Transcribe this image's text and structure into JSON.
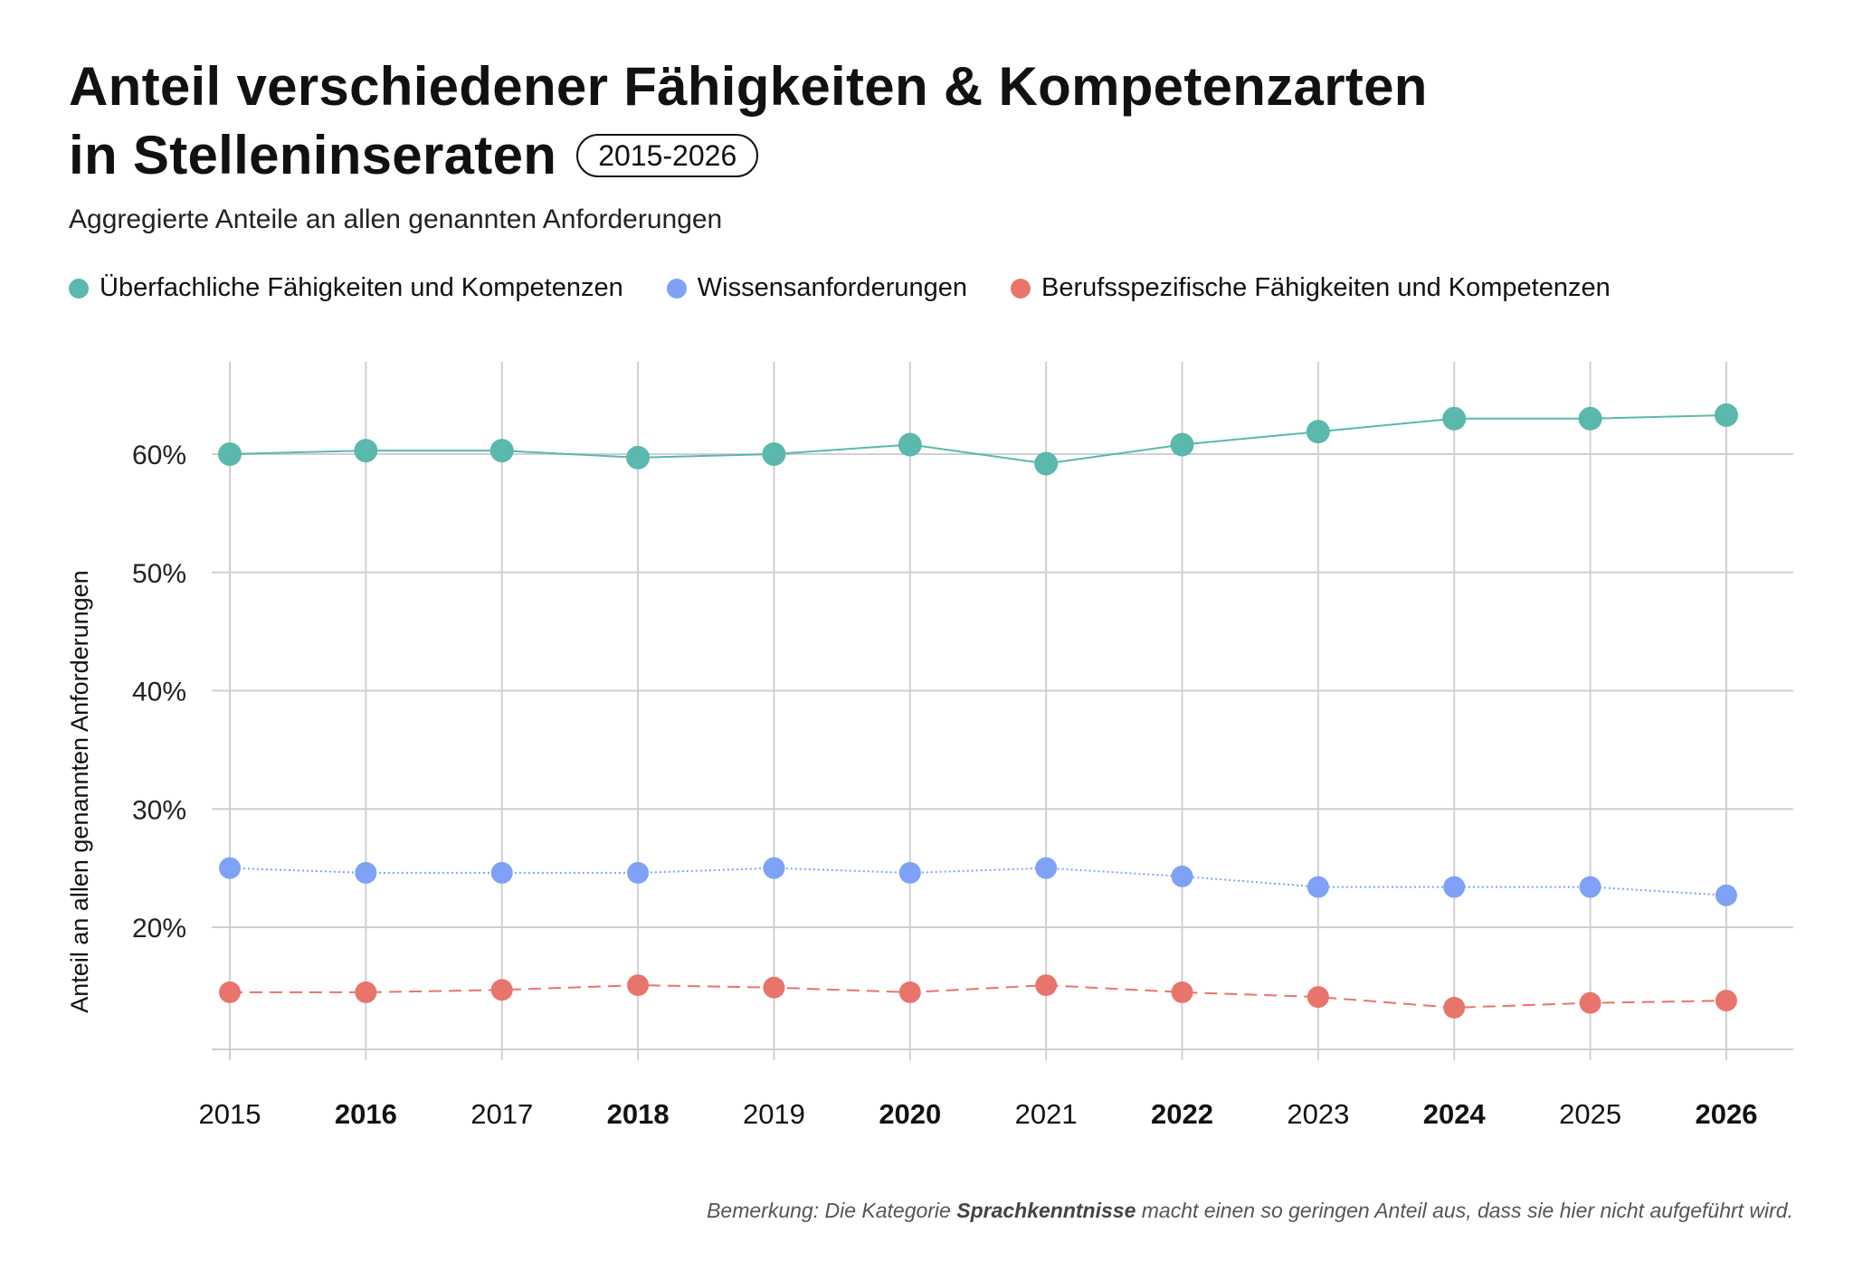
{
  "header": {
    "title_line1": "Anteil verschiedener Fähigkeiten & Kompetenzarten",
    "title_line2": "in Stelleninseraten",
    "range_badge": "2015-2026",
    "subtitle": "Aggregierte Anteile an allen genannten Anforderungen"
  },
  "legend": [
    {
      "label": "Überfachliche Fähigkeiten und Kompetenzen",
      "color": "#5ab8ad"
    },
    {
      "label": "Wissensanforderungen",
      "color": "#7fa2f7"
    },
    {
      "label": "Berufsspezifische Fähigkeiten und Kompetenzen",
      "color": "#e8756c"
    }
  ],
  "chart_data": {
    "type": "line",
    "title": "Anteil verschiedener Fähigkeiten & Kompetenzarten in Stelleninseraten",
    "subtitle": "Aggregierte Anteile an allen genannten Anforderungen",
    "xlabel": "",
    "ylabel": "Anteil an allen genannten Anforderungen",
    "x": [
      "2015",
      "2016",
      "2017",
      "2018",
      "2019",
      "2020",
      "2021",
      "2022",
      "2023",
      "2024",
      "2025",
      "2026"
    ],
    "x_bold": [
      "2016",
      "2018",
      "2020",
      "2022",
      "2024",
      "2026"
    ],
    "ylim": [
      10,
      67
    ],
    "yticks": [
      20,
      30,
      40,
      50,
      60
    ],
    "ytick_labels": [
      "20%",
      "30%",
      "40%",
      "50%",
      "60%"
    ],
    "grid": true,
    "legend_position": "top-left",
    "series": [
      {
        "name": "Überfachliche Fähigkeiten und Kompetenzen",
        "color": "#5ab8ad",
        "line_style": "solid",
        "values": [
          60.0,
          60.3,
          60.3,
          59.7,
          60.0,
          60.8,
          59.2,
          60.8,
          61.9,
          63.0,
          63.0,
          63.3
        ]
      },
      {
        "name": "Wissensanforderungen",
        "color": "#7fa2f7",
        "line_style": "dotted",
        "values": [
          25.0,
          24.6,
          24.6,
          24.6,
          25.0,
          24.6,
          25.0,
          24.3,
          23.4,
          23.4,
          23.4,
          22.7
        ]
      },
      {
        "name": "Berufsspezifische Fähigkeiten und Kompetenzen",
        "color": "#e8756c",
        "line_style": "dashed",
        "values": [
          14.5,
          14.5,
          14.7,
          15.1,
          14.9,
          14.5,
          15.1,
          14.5,
          14.1,
          13.2,
          13.6,
          13.8
        ]
      }
    ]
  },
  "footnote": {
    "prefix": "Bemerkung: Die Kategorie ",
    "emphasis": "Sprachkenntnisse",
    "suffix": " macht einen so geringen Anteil aus, dass sie hier nicht aufgeführt wird."
  }
}
